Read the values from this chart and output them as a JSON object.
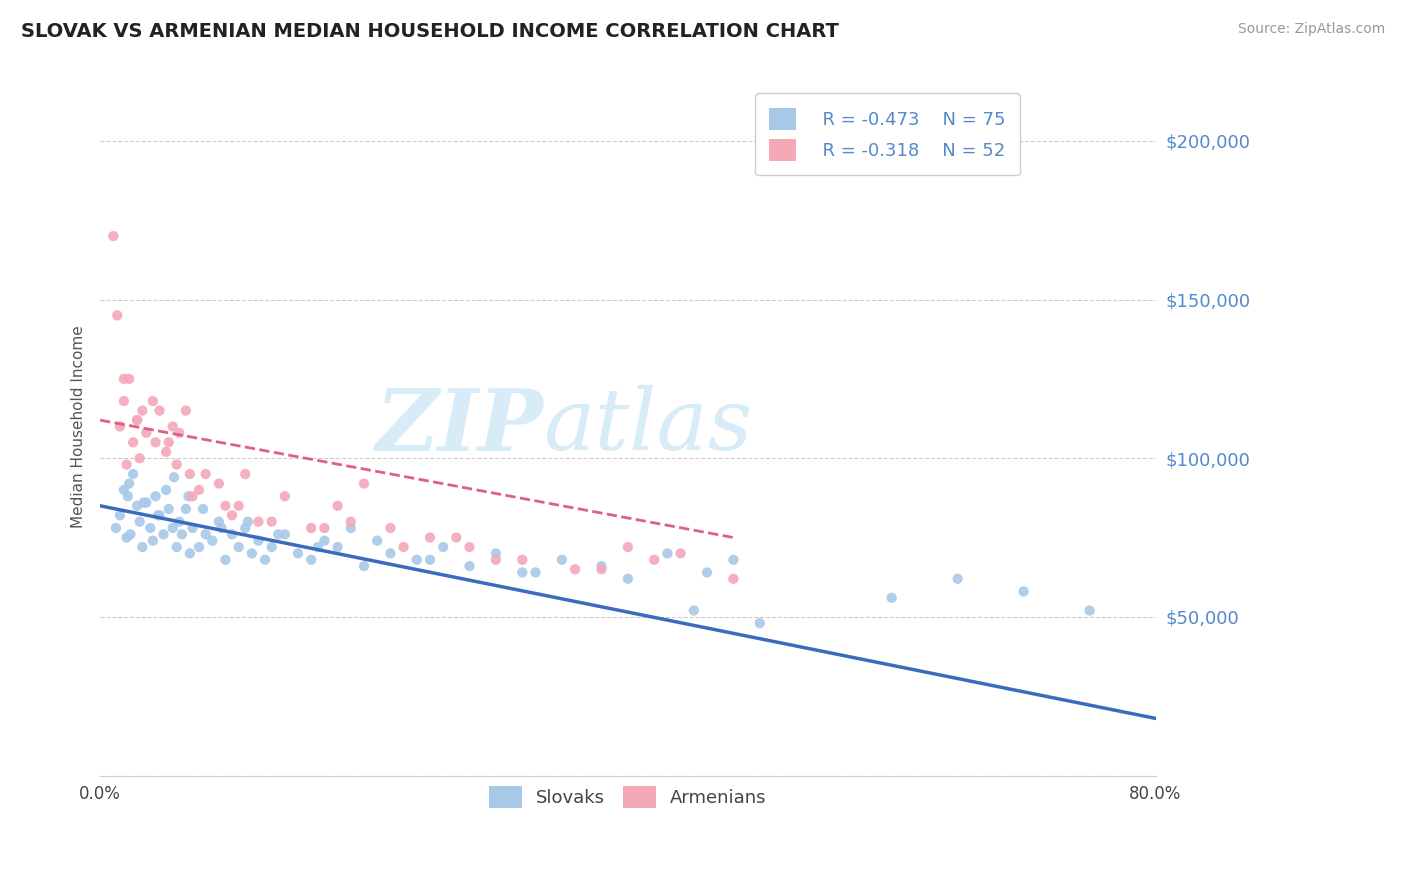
{
  "title": "SLOVAK VS ARMENIAN MEDIAN HOUSEHOLD INCOME CORRELATION CHART",
  "source": "Source: ZipAtlas.com",
  "ylabel": "Median Household Income",
  "xmin": 0.0,
  "xmax": 80.0,
  "ymin": 0,
  "ymax": 220000,
  "yticks": [
    0,
    50000,
    100000,
    150000,
    200000
  ],
  "background_color": "#ffffff",
  "legend_R1": "-0.473",
  "legend_N1": "75",
  "legend_R2": "-0.318",
  "legend_N2": "52",
  "slovak_color": "#a8c8e8",
  "armenian_color": "#f4a8b8",
  "slovak_line_color": "#3a6bbf",
  "armenian_line_color": "#e06080",
  "grid_color": "#cccccc",
  "label_color": "#5588cc",
  "title_color": "#222222",
  "watermark_color": "#c8e4f4",
  "slovak_line_x0": 0.0,
  "slovak_line_y0": 85000,
  "slovak_line_x1": 80.0,
  "slovak_line_y1": 18000,
  "armenian_line_x0": 0.0,
  "armenian_line_y0": 112000,
  "armenian_line_x1": 48.0,
  "armenian_line_y1": 75000,
  "slovak_scatter_x": [
    1.2,
    1.5,
    1.8,
    2.0,
    2.1,
    2.3,
    2.5,
    2.8,
    3.0,
    3.2,
    3.5,
    3.8,
    4.0,
    4.2,
    4.5,
    4.8,
    5.0,
    5.2,
    5.5,
    5.8,
    6.0,
    6.2,
    6.5,
    6.8,
    7.0,
    7.5,
    8.0,
    8.5,
    9.0,
    9.5,
    10.0,
    10.5,
    11.0,
    11.5,
    12.0,
    12.5,
    13.0,
    14.0,
    15.0,
    16.0,
    17.0,
    18.0,
    19.0,
    20.0,
    22.0,
    24.0,
    26.0,
    28.0,
    30.0,
    32.0,
    35.0,
    38.0,
    40.0,
    43.0,
    46.0,
    48.0,
    50.0,
    65.0,
    70.0,
    2.2,
    3.3,
    4.4,
    5.6,
    6.7,
    7.8,
    9.2,
    11.2,
    13.5,
    16.5,
    21.0,
    25.0,
    33.0,
    45.0,
    60.0,
    75.0
  ],
  "slovak_scatter_y": [
    78000,
    82000,
    90000,
    75000,
    88000,
    76000,
    95000,
    85000,
    80000,
    72000,
    86000,
    78000,
    74000,
    88000,
    82000,
    76000,
    90000,
    84000,
    78000,
    72000,
    80000,
    76000,
    84000,
    70000,
    78000,
    72000,
    76000,
    74000,
    80000,
    68000,
    76000,
    72000,
    78000,
    70000,
    74000,
    68000,
    72000,
    76000,
    70000,
    68000,
    74000,
    72000,
    78000,
    66000,
    70000,
    68000,
    72000,
    66000,
    70000,
    64000,
    68000,
    66000,
    62000,
    70000,
    64000,
    68000,
    48000,
    62000,
    58000,
    92000,
    86000,
    82000,
    94000,
    88000,
    84000,
    78000,
    80000,
    76000,
    72000,
    74000,
    68000,
    64000,
    52000,
    56000,
    52000
  ],
  "armenian_scatter_x": [
    1.0,
    1.3,
    1.5,
    1.8,
    2.0,
    2.2,
    2.5,
    2.8,
    3.0,
    3.5,
    4.0,
    4.5,
    5.0,
    5.5,
    6.0,
    6.5,
    7.0,
    8.0,
    9.0,
    10.0,
    11.0,
    12.0,
    14.0,
    16.0,
    18.0,
    20.0,
    22.0,
    25.0,
    28.0,
    32.0,
    36.0,
    40.0,
    44.0,
    3.2,
    4.2,
    5.8,
    7.5,
    9.5,
    13.0,
    17.0,
    23.0,
    30.0,
    38.0,
    2.8,
    6.8,
    10.5,
    19.0,
    27.0,
    42.0,
    1.8,
    5.2,
    48.0
  ],
  "armenian_scatter_y": [
    170000,
    145000,
    110000,
    118000,
    98000,
    125000,
    105000,
    112000,
    100000,
    108000,
    118000,
    115000,
    102000,
    110000,
    108000,
    115000,
    88000,
    95000,
    92000,
    82000,
    95000,
    80000,
    88000,
    78000,
    85000,
    92000,
    78000,
    75000,
    72000,
    68000,
    65000,
    72000,
    70000,
    115000,
    105000,
    98000,
    90000,
    85000,
    80000,
    78000,
    72000,
    68000,
    65000,
    112000,
    95000,
    85000,
    80000,
    75000,
    68000,
    125000,
    105000,
    62000
  ]
}
